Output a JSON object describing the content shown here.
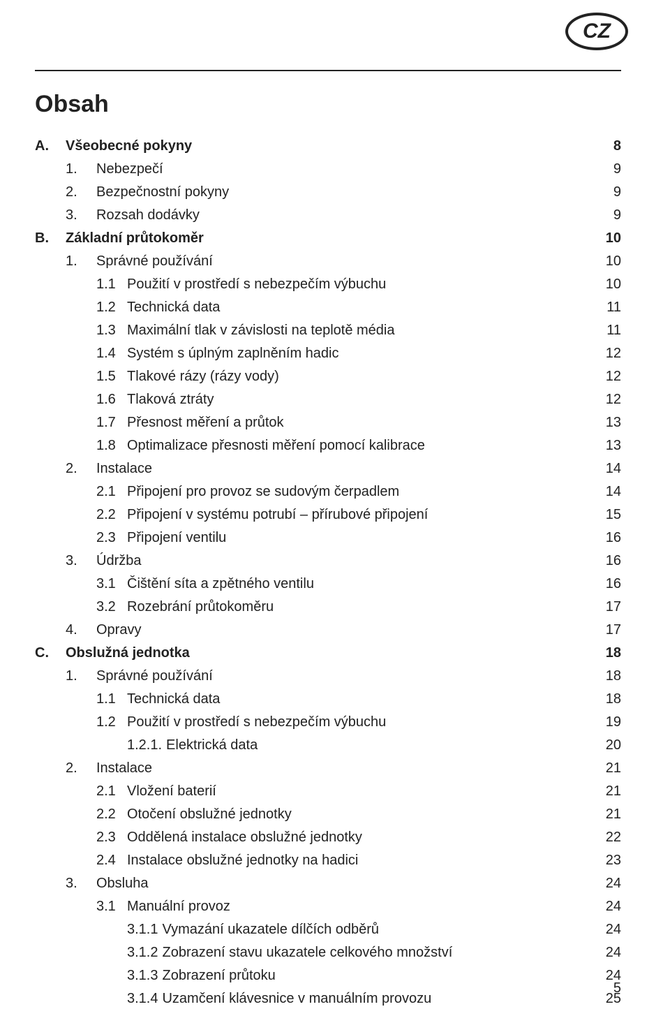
{
  "badge": "CZ",
  "title": "Obsah",
  "footer_page": "5",
  "colors": {
    "text": "#222222",
    "bg": "#ffffff",
    "rule": "#222222"
  },
  "typography": {
    "family": "Arial",
    "title_pt": 26,
    "body_pt": 15
  },
  "toc": [
    {
      "level": 0,
      "bold": true,
      "num": "A.",
      "text": "Všeobecné pokyny",
      "page": "8"
    },
    {
      "level": 1,
      "bold": false,
      "num": "1.",
      "text": "Nebezpečí",
      "page": "9"
    },
    {
      "level": 1,
      "bold": false,
      "num": "2.",
      "text": "Bezpečnostní pokyny",
      "page": "9"
    },
    {
      "level": 1,
      "bold": false,
      "num": "3.",
      "text": "Rozsah dodávky",
      "page": "9"
    },
    {
      "level": 0,
      "bold": true,
      "num": "B.",
      "text": "Základní průtokoměr",
      "page": "10"
    },
    {
      "level": 1,
      "bold": false,
      "num": "1.",
      "text": "Správné používání",
      "page": "10"
    },
    {
      "level": 2,
      "bold": false,
      "num": "1.1",
      "text": "Použití v prostředí s nebezpečím výbuchu",
      "page": "10"
    },
    {
      "level": 2,
      "bold": false,
      "num": "1.2",
      "text": "Technická data",
      "page": "11"
    },
    {
      "level": 2,
      "bold": false,
      "num": "1.3",
      "text": "Maximální tlak v závislosti na teplotě média",
      "page": "11"
    },
    {
      "level": 2,
      "bold": false,
      "num": "1.4",
      "text": "Systém s úplným zaplněním hadic",
      "page": "12"
    },
    {
      "level": 2,
      "bold": false,
      "num": "1.5",
      "text": "Tlakové rázy (rázy vody)",
      "page": "12"
    },
    {
      "level": 2,
      "bold": false,
      "num": "1.6",
      "text": "Tlaková ztráty",
      "page": "12"
    },
    {
      "level": 2,
      "bold": false,
      "num": "1.7",
      "text": "Přesnost měření a průtok",
      "page": "13"
    },
    {
      "level": 2,
      "bold": false,
      "num": "1.8",
      "text": "Optimalizace přesnosti měření pomocí kalibrace",
      "page": "13"
    },
    {
      "level": 1,
      "bold": false,
      "num": "2.",
      "text": "Instalace",
      "page": "14"
    },
    {
      "level": 2,
      "bold": false,
      "num": "2.1",
      "text": "Připojení pro provoz se sudovým čerpadlem",
      "page": "14"
    },
    {
      "level": 2,
      "bold": false,
      "num": "2.2",
      "text": "Připojení v systému potrubí – přírubové připojení",
      "page": "15"
    },
    {
      "level": 2,
      "bold": false,
      "num": "2.3",
      "text": "Připojení ventilu",
      "page": "16"
    },
    {
      "level": 1,
      "bold": false,
      "num": "3.",
      "text": "Údržba",
      "page": "16"
    },
    {
      "level": 2,
      "bold": false,
      "num": "3.1",
      "text": "Čištění síta a zpětného ventilu",
      "page": "16"
    },
    {
      "level": 2,
      "bold": false,
      "num": "3.2",
      "text": "Rozebrání průtokoměru",
      "page": "17"
    },
    {
      "level": 1,
      "bold": false,
      "num": "4.",
      "text": "Opravy",
      "page": "17"
    },
    {
      "level": 0,
      "bold": true,
      "num": "C.",
      "text": "Obslužná jednotka",
      "page": "18"
    },
    {
      "level": 1,
      "bold": false,
      "num": "1.",
      "text": "Správné používání",
      "page": "18"
    },
    {
      "level": 2,
      "bold": false,
      "num": "1.1",
      "text": "Technická data",
      "page": "18"
    },
    {
      "level": 2,
      "bold": false,
      "num": "1.2",
      "text": "Použití v prostředí s nebezpečím výbuchu",
      "page": "19"
    },
    {
      "level": 3,
      "bold": false,
      "num": "1.2.1.",
      "text": "Elektrická data",
      "page": "20"
    },
    {
      "level": 1,
      "bold": false,
      "num": "2.",
      "text": "Instalace",
      "page": "21"
    },
    {
      "level": 2,
      "bold": false,
      "num": "2.1",
      "text": "Vložení baterií",
      "page": "21"
    },
    {
      "level": 2,
      "bold": false,
      "num": "2.2",
      "text": "Otočení obslužné jednotky",
      "page": "21"
    },
    {
      "level": 2,
      "bold": false,
      "num": "2.3",
      "text": "Oddělená instalace obslužné jednotky",
      "page": "22"
    },
    {
      "level": 2,
      "bold": false,
      "num": "2.4",
      "text": "Instalace obslužné jednotky na hadici",
      "page": "23"
    },
    {
      "level": 1,
      "bold": false,
      "num": "3.",
      "text": "Obsluha",
      "page": "24"
    },
    {
      "level": 2,
      "bold": false,
      "num": "3.1",
      "text": "Manuální provoz",
      "page": "24"
    },
    {
      "level": 3,
      "bold": false,
      "num": "3.1.1",
      "text": "Vymazání ukazatele dílčích odběrů",
      "page": "24"
    },
    {
      "level": 3,
      "bold": false,
      "num": "3.1.2",
      "text": "Zobrazení stavu ukazatele celkového množství",
      "page": "24"
    },
    {
      "level": 3,
      "bold": false,
      "num": "3.1.3",
      "text": "Zobrazení průtoku",
      "page": "24"
    },
    {
      "level": 3,
      "bold": false,
      "num": "3.1.4",
      "text": "Uzamčení klávesnice v manuálním provozu",
      "page": "25"
    }
  ]
}
